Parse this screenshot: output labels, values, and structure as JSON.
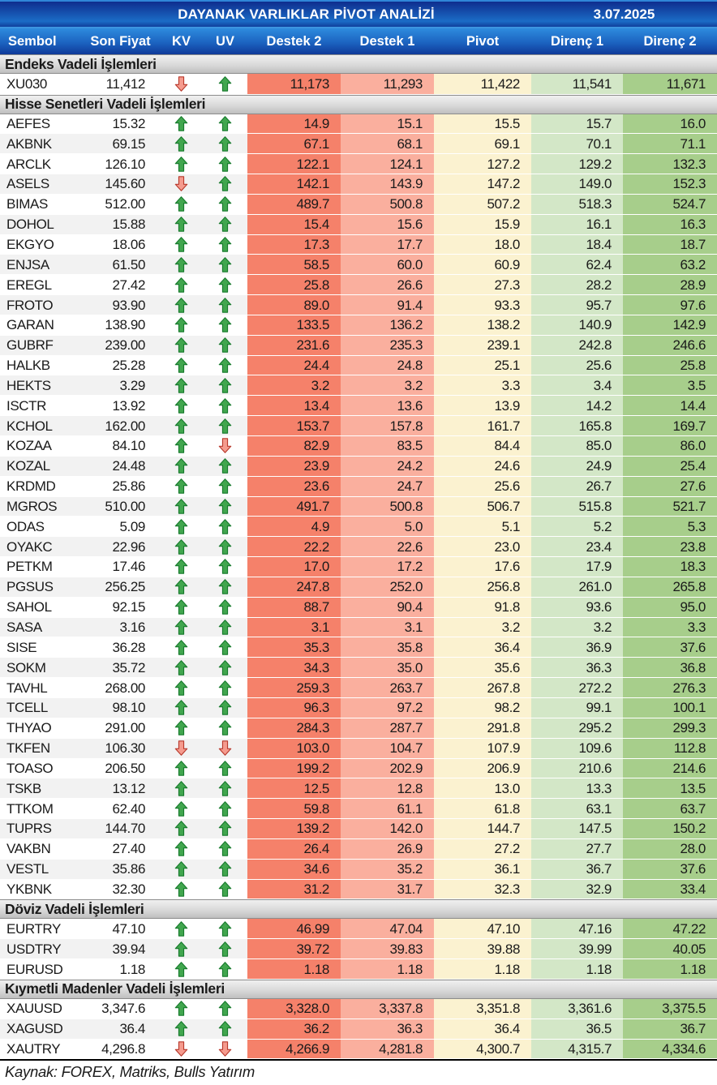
{
  "header": {
    "title": "DAYANAK VARLIKLAR PİVOT ANALİZİ",
    "date": "3.07.2025"
  },
  "footer": {
    "text": "Kaynak: FOREX, Matriks, Bulls Yatırım"
  },
  "colors": {
    "header_blue_top": "#0e2d8e",
    "header_blue_bottom": "#1b6cc6",
    "destek2_bg": "#f5816a",
    "destek1_bg": "#faaf9e",
    "pivot_bg": "#fbf2d0",
    "direnc1_bg": "#d3e7c7",
    "direnc2_bg": "#a7ce8b",
    "section_bg": "#d9d9d9",
    "alt_row_bg": "#f2f2f2",
    "up_arrow_fill": "#41a64e",
    "up_arrow_stroke": "#167a2c",
    "down_arrow_fill": "#f59b8e",
    "down_arrow_stroke": "#b8392c"
  },
  "icons": {
    "up": "up-arrow-icon",
    "down": "down-arrow-icon"
  },
  "chart_data": {
    "type": "table",
    "columns": [
      "Sembol",
      "Son Fiyat",
      "KV",
      "UV",
      "Destek 2",
      "Destek 1",
      "Pivot",
      "Direnç 1",
      "Direnç 2"
    ],
    "sections": [
      {
        "label": "Endeks Vadeli İşlemleri",
        "rows": [
          [
            "XU030",
            "11,412",
            "down",
            "up",
            "11,173",
            "11,293",
            "11,422",
            "11,541",
            "11,671"
          ]
        ]
      },
      {
        "label": "Hisse Senetleri Vadeli İşlemleri",
        "rows": [
          [
            "AEFES",
            "15.32",
            "up",
            "up",
            "14.9",
            "15.1",
            "15.5",
            "15.7",
            "16.0"
          ],
          [
            "AKBNK",
            "69.15",
            "up",
            "up",
            "67.1",
            "68.1",
            "69.1",
            "70.1",
            "71.1"
          ],
          [
            "ARCLK",
            "126.10",
            "up",
            "up",
            "122.1",
            "124.1",
            "127.2",
            "129.2",
            "132.3"
          ],
          [
            "ASELS",
            "145.60",
            "down",
            "up",
            "142.1",
            "143.9",
            "147.2",
            "149.0",
            "152.3"
          ],
          [
            "BIMAS",
            "512.00",
            "up",
            "up",
            "489.7",
            "500.8",
            "507.2",
            "518.3",
            "524.7"
          ],
          [
            "DOHOL",
            "15.88",
            "up",
            "up",
            "15.4",
            "15.6",
            "15.9",
            "16.1",
            "16.3"
          ],
          [
            "EKGYO",
            "18.06",
            "up",
            "up",
            "17.3",
            "17.7",
            "18.0",
            "18.4",
            "18.7"
          ],
          [
            "ENJSA",
            "61.50",
            "up",
            "up",
            "58.5",
            "60.0",
            "60.9",
            "62.4",
            "63.2"
          ],
          [
            "EREGL",
            "27.42",
            "up",
            "up",
            "25.8",
            "26.6",
            "27.3",
            "28.2",
            "28.9"
          ],
          [
            "FROTO",
            "93.90",
            "up",
            "up",
            "89.0",
            "91.4",
            "93.3",
            "95.7",
            "97.6"
          ],
          [
            "GARAN",
            "138.90",
            "up",
            "up",
            "133.5",
            "136.2",
            "138.2",
            "140.9",
            "142.9"
          ],
          [
            "GUBRF",
            "239.00",
            "up",
            "up",
            "231.6",
            "235.3",
            "239.1",
            "242.8",
            "246.6"
          ],
          [
            "HALKB",
            "25.28",
            "up",
            "up",
            "24.4",
            "24.8",
            "25.1",
            "25.6",
            "25.8"
          ],
          [
            "HEKTS",
            "3.29",
            "up",
            "up",
            "3.2",
            "3.2",
            "3.3",
            "3.4",
            "3.5"
          ],
          [
            "ISCTR",
            "13.92",
            "up",
            "up",
            "13.4",
            "13.6",
            "13.9",
            "14.2",
            "14.4"
          ],
          [
            "KCHOL",
            "162.00",
            "up",
            "up",
            "153.7",
            "157.8",
            "161.7",
            "165.8",
            "169.7"
          ],
          [
            "KOZAA",
            "84.10",
            "up",
            "down",
            "82.9",
            "83.5",
            "84.4",
            "85.0",
            "86.0"
          ],
          [
            "KOZAL",
            "24.48",
            "up",
            "up",
            "23.9",
            "24.2",
            "24.6",
            "24.9",
            "25.4"
          ],
          [
            "KRDMD",
            "25.86",
            "up",
            "up",
            "23.6",
            "24.7",
            "25.6",
            "26.7",
            "27.6"
          ],
          [
            "MGROS",
            "510.00",
            "up",
            "up",
            "491.7",
            "500.8",
            "506.7",
            "515.8",
            "521.7"
          ],
          [
            "ODAS",
            "5.09",
            "up",
            "up",
            "4.9",
            "5.0",
            "5.1",
            "5.2",
            "5.3"
          ],
          [
            "OYAKC",
            "22.96",
            "up",
            "up",
            "22.2",
            "22.6",
            "23.0",
            "23.4",
            "23.8"
          ],
          [
            "PETKM",
            "17.46",
            "up",
            "up",
            "17.0",
            "17.2",
            "17.6",
            "17.9",
            "18.3"
          ],
          [
            "PGSUS",
            "256.25",
            "up",
            "up",
            "247.8",
            "252.0",
            "256.8",
            "261.0",
            "265.8"
          ],
          [
            "SAHOL",
            "92.15",
            "up",
            "up",
            "88.7",
            "90.4",
            "91.8",
            "93.6",
            "95.0"
          ],
          [
            "SASA",
            "3.16",
            "up",
            "up",
            "3.1",
            "3.1",
            "3.2",
            "3.2",
            "3.3"
          ],
          [
            "SISE",
            "36.28",
            "up",
            "up",
            "35.3",
            "35.8",
            "36.4",
            "36.9",
            "37.6"
          ],
          [
            "SOKM",
            "35.72",
            "up",
            "up",
            "34.3",
            "35.0",
            "35.6",
            "36.3",
            "36.8"
          ],
          [
            "TAVHL",
            "268.00",
            "up",
            "up",
            "259.3",
            "263.7",
            "267.8",
            "272.2",
            "276.3"
          ],
          [
            "TCELL",
            "98.10",
            "up",
            "up",
            "96.3",
            "97.2",
            "98.2",
            "99.1",
            "100.1"
          ],
          [
            "THYAO",
            "291.00",
            "up",
            "up",
            "284.3",
            "287.7",
            "291.8",
            "295.2",
            "299.3"
          ],
          [
            "TKFEN",
            "106.30",
            "down",
            "down",
            "103.0",
            "104.7",
            "107.9",
            "109.6",
            "112.8"
          ],
          [
            "TOASO",
            "206.50",
            "up",
            "up",
            "199.2",
            "202.9",
            "206.9",
            "210.6",
            "214.6"
          ],
          [
            "TSKB",
            "13.12",
            "up",
            "up",
            "12.5",
            "12.8",
            "13.0",
            "13.3",
            "13.5"
          ],
          [
            "TTKOM",
            "62.40",
            "up",
            "up",
            "59.8",
            "61.1",
            "61.8",
            "63.1",
            "63.7"
          ],
          [
            "TUPRS",
            "144.70",
            "up",
            "up",
            "139.2",
            "142.0",
            "144.7",
            "147.5",
            "150.2"
          ],
          [
            "VAKBN",
            "27.40",
            "up",
            "up",
            "26.4",
            "26.9",
            "27.2",
            "27.7",
            "28.0"
          ],
          [
            "VESTL",
            "35.86",
            "up",
            "up",
            "34.6",
            "35.2",
            "36.1",
            "36.7",
            "37.6"
          ],
          [
            "YKBNK",
            "32.30",
            "up",
            "up",
            "31.2",
            "31.7",
            "32.3",
            "32.9",
            "33.4"
          ]
        ]
      },
      {
        "label": "Döviz Vadeli İşlemleri",
        "rows": [
          [
            "EURTRY",
            "47.10",
            "up",
            "up",
            "46.99",
            "47.04",
            "47.10",
            "47.16",
            "47.22"
          ],
          [
            "USDTRY",
            "39.94",
            "up",
            "up",
            "39.72",
            "39.83",
            "39.88",
            "39.99",
            "40.05"
          ],
          [
            "EURUSD",
            "1.18",
            "up",
            "up",
            "1.18",
            "1.18",
            "1.18",
            "1.18",
            "1.18"
          ]
        ]
      },
      {
        "label": "Kıymetli Madenler Vadeli İşlemleri",
        "rows": [
          [
            "XAUUSD",
            "3,347.6",
            "up",
            "up",
            "3,328.0",
            "3,337.8",
            "3,351.8",
            "3,361.6",
            "3,375.5"
          ],
          [
            "XAGUSD",
            "36.4",
            "up",
            "up",
            "36.2",
            "36.3",
            "36.4",
            "36.5",
            "36.7"
          ],
          [
            "XAUTRY",
            "4,296.8",
            "down",
            "down",
            "4,266.9",
            "4,281.8",
            "4,300.7",
            "4,315.7",
            "4,334.6"
          ]
        ]
      }
    ]
  }
}
